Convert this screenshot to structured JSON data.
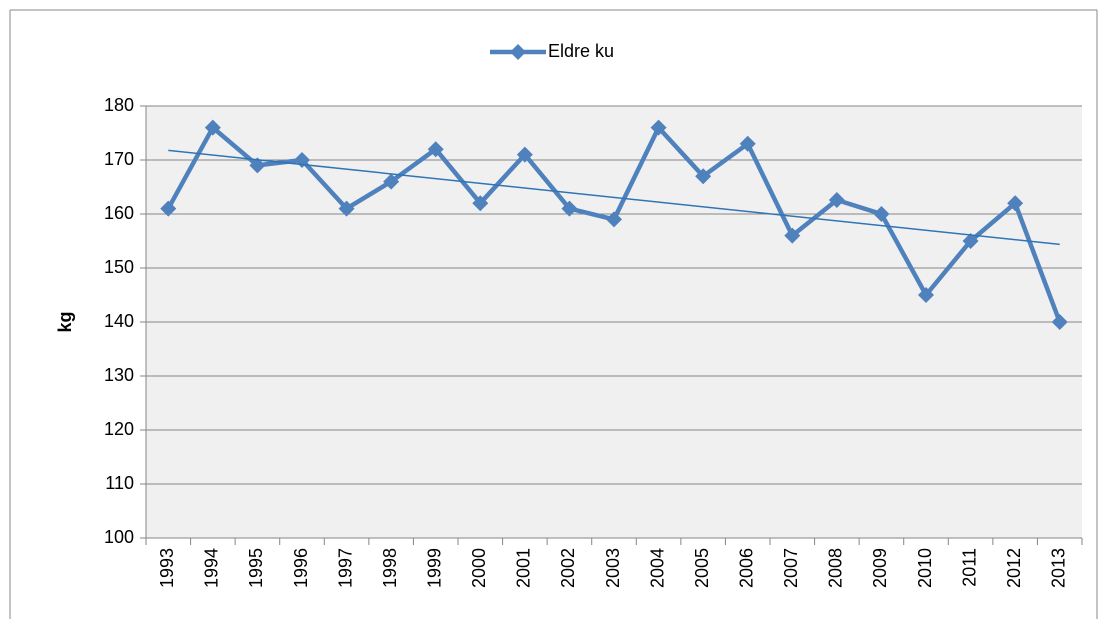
{
  "chart_data": {
    "type": "line",
    "categories": [
      "1993",
      "1994",
      "1995",
      "1996",
      "1997",
      "1998",
      "1999",
      "2000",
      "2001",
      "2002",
      "2003",
      "2004",
      "2005",
      "2006",
      "2007",
      "2008",
      "2009",
      "2010",
      "2011",
      "2012",
      "2013"
    ],
    "series": [
      {
        "name": "Eldre ku",
        "color": "#4f81bd",
        "values": [
          161,
          176,
          169,
          170,
          161,
          166,
          172,
          162,
          171,
          161,
          159,
          176,
          167,
          173,
          156,
          162.6,
          160,
          145,
          155,
          162,
          140
        ]
      }
    ],
    "y_label": "kg",
    "ylim": [
      100,
      180
    ],
    "yticks": [
      100,
      110,
      120,
      130,
      140,
      150,
      160,
      170,
      180
    ],
    "grid": true,
    "trendline": true,
    "trendline_color": "#2e75b6",
    "legend": "top"
  }
}
